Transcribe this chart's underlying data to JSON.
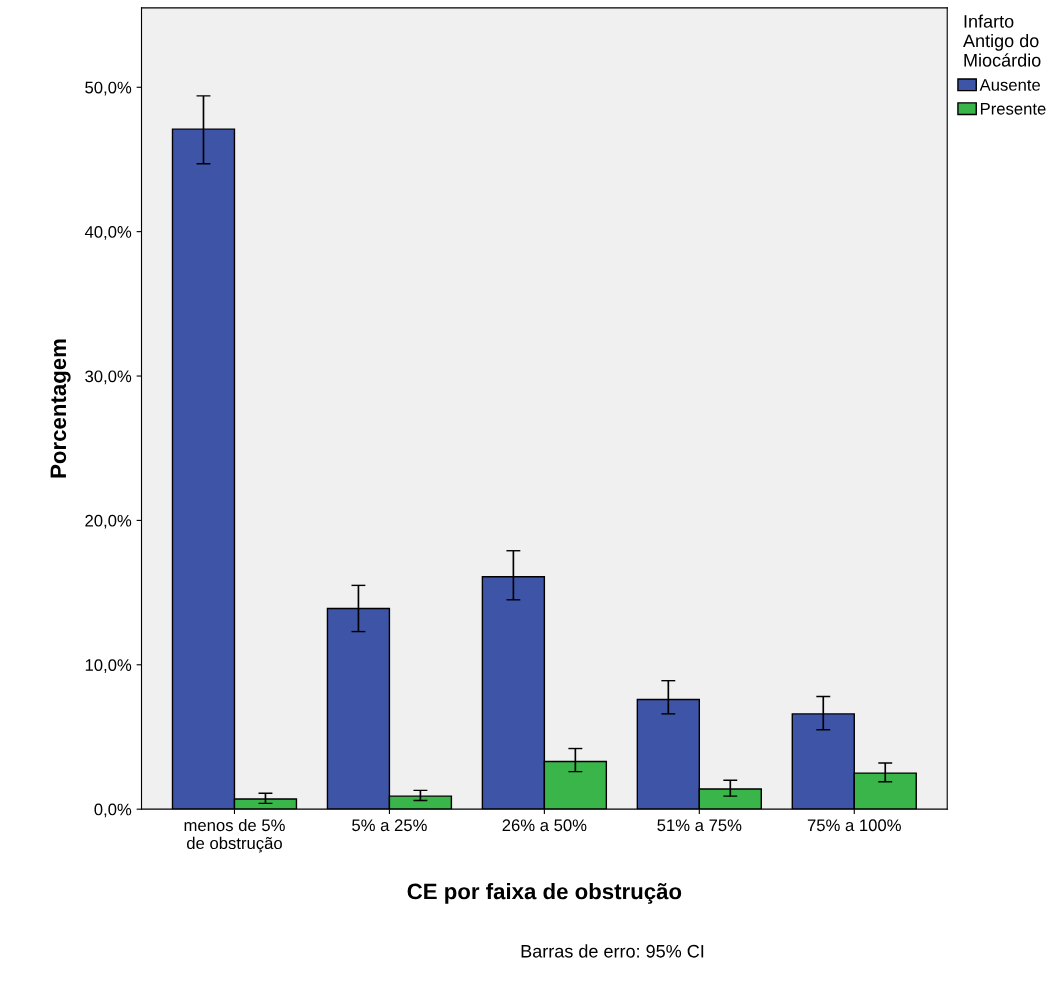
{
  "chart_data": {
    "type": "bar",
    "xlabel": "CE por faixa de obstrução",
    "ylabel": "Porcentagem",
    "legend_title": "Infarto\nAntigo do\nMiocárdio",
    "categories": [
      "menos de 5%\nde obstrução",
      "5% a 25%",
      "26% a 50%",
      "51% a 75%",
      "75% a 100%"
    ],
    "series": [
      {
        "name": "Ausente",
        "color": "#3e54a6",
        "values": [
          47.1,
          13.9,
          16.1,
          7.6,
          6.6
        ],
        "errors": [
          [
            44.7,
            49.4
          ],
          [
            12.3,
            15.5
          ],
          [
            14.5,
            17.9
          ],
          [
            6.6,
            8.9
          ],
          [
            5.5,
            7.8
          ]
        ]
      },
      {
        "name": "Presente",
        "color": "#3ab54a",
        "values": [
          0.7,
          0.9,
          3.3,
          1.4,
          2.5
        ],
        "errors": [
          [
            0.4,
            1.1
          ],
          [
            0.6,
            1.3
          ],
          [
            2.6,
            4.2
          ],
          [
            0.9,
            2.0
          ],
          [
            1.9,
            3.2
          ]
        ]
      }
    ],
    "ylim": [
      0,
      55.5
    ],
    "yticks": [
      {
        "value": 0,
        "label": "0,0%"
      },
      {
        "value": 10,
        "label": "10,0%"
      },
      {
        "value": 20,
        "label": "20,0%"
      },
      {
        "value": 30,
        "label": "30,0%"
      },
      {
        "value": 40,
        "label": "40,0%"
      },
      {
        "value": 50,
        "label": "50,0%"
      }
    ],
    "grid": false,
    "legend": "right",
    "annotations": [
      "Barras de erro: 95% CI"
    ]
  }
}
